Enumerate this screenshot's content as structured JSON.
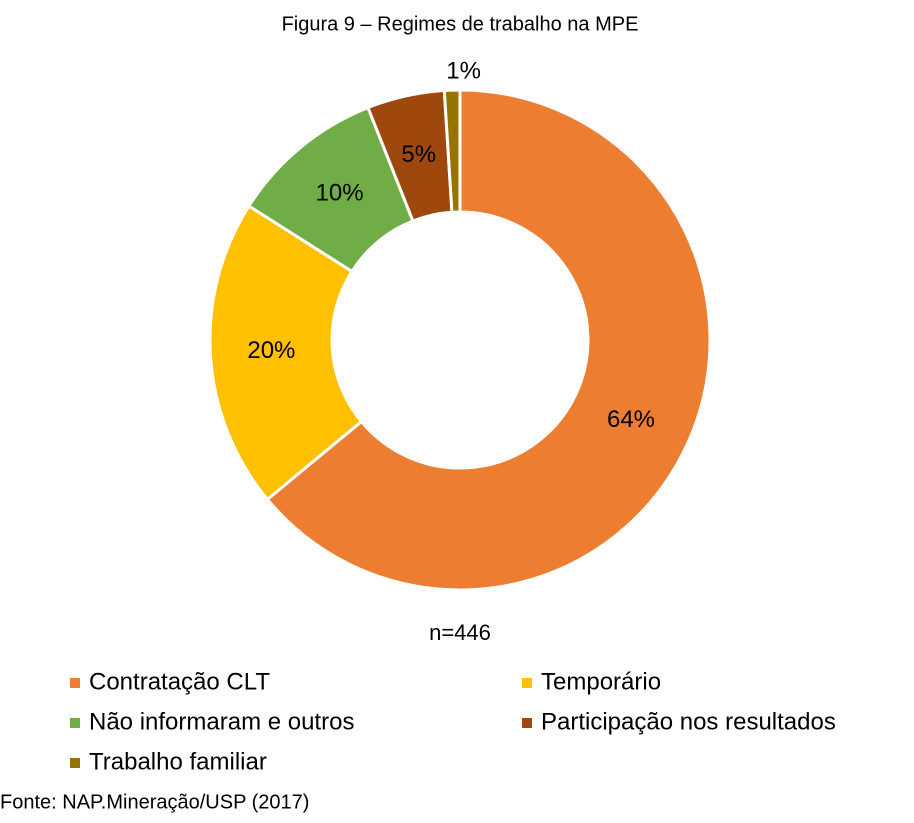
{
  "chart_data": {
    "type": "donut",
    "title": "Figura 9 – Regimes de trabalho na MPE",
    "categories": [
      "Contratação CLT",
      "Temporário",
      "Não informaram e outros",
      "Participação nos resultados",
      "Trabalho familiar"
    ],
    "values": [
      64,
      20,
      10,
      5,
      1
    ],
    "value_labels": [
      "64%",
      "20%",
      "10%",
      "5%",
      "1%"
    ],
    "colors": [
      "#ED7D31",
      "#FFC000",
      "#70AD47",
      "#9E480E",
      "#997300"
    ],
    "annotation": "n=446",
    "source": "Fonte: NAP.Mineração/USP (2017)",
    "legend": "bottom"
  }
}
